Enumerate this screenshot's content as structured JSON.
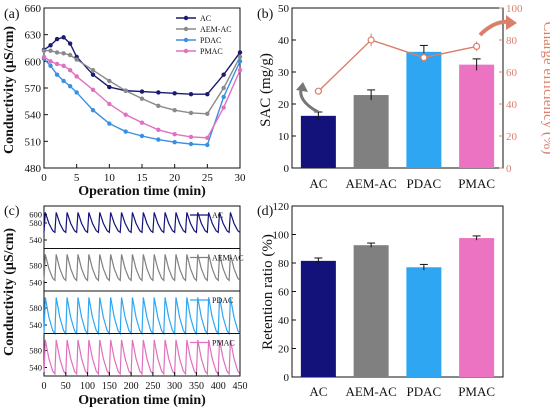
{
  "figure": {
    "panel_labels": [
      "(a)",
      "(b)",
      "(c)",
      "(d)"
    ]
  },
  "chart_data": [
    {
      "id": "a",
      "type": "line",
      "xlabel": "Operation time (min)",
      "ylabel": "Conductivity (μS/cm)",
      "xlim": [
        0,
        30
      ],
      "ylim": [
        480,
        660
      ],
      "xticks": [
        0,
        5,
        10,
        15,
        20,
        25,
        30
      ],
      "yticks": [
        480,
        510,
        540,
        570,
        600,
        630,
        660
      ],
      "legend_position": "top-right",
      "series": [
        {
          "name": "AC",
          "color": "#1a1a6e",
          "marker": "circle",
          "x": [
            0,
            1,
            2,
            3,
            4,
            5,
            7.5,
            10,
            12.5,
            15,
            17.5,
            20,
            22.5,
            25,
            27.5,
            30
          ],
          "y": [
            613,
            618,
            625,
            627,
            620,
            605,
            585,
            571,
            567,
            566,
            565,
            564,
            563,
            563,
            585,
            610
          ]
        },
        {
          "name": "AEM-AC",
          "color": "#8a8a8a",
          "marker": "circle",
          "x": [
            0,
            1,
            2,
            3,
            4,
            5,
            7.5,
            10,
            12.5,
            15,
            17.5,
            20,
            22.5,
            25,
            27.5,
            30
          ],
          "y": [
            612,
            612,
            610,
            609,
            607,
            602,
            590,
            578,
            567,
            558,
            550,
            545,
            542,
            541,
            570,
            605
          ]
        },
        {
          "name": "PDAC",
          "color": "#3a8fe0",
          "marker": "circle",
          "x": [
            0,
            1,
            2,
            3,
            4,
            5,
            7.5,
            10,
            12.5,
            15,
            17.5,
            20,
            22.5,
            25,
            27.5,
            30
          ],
          "y": [
            603,
            595,
            585,
            578,
            572,
            565,
            545,
            530,
            521,
            516,
            512,
            509,
            507,
            506,
            560,
            600
          ]
        },
        {
          "name": "PMAC",
          "color": "#e070c0",
          "marker": "circle",
          "x": [
            0,
            1,
            2,
            3,
            4,
            5,
            7.5,
            10,
            12.5,
            15,
            17.5,
            20,
            22.5,
            25,
            27.5,
            30
          ],
          "y": [
            605,
            600,
            597,
            595,
            590,
            583,
            568,
            552,
            540,
            531,
            523,
            518,
            515,
            514,
            548,
            590
          ]
        }
      ]
    },
    {
      "id": "b",
      "type": "bar",
      "categories": [
        "AC",
        "AEM-AC",
        "PDAC",
        "PMAC"
      ],
      "ylabel": "SAC (mg/g)",
      "ylabel_right": "Charge efficiency (%)",
      "ylim": [
        0,
        50
      ],
      "yticks": [
        0,
        10,
        20,
        30,
        40,
        50
      ],
      "ylim_right": [
        0,
        100
      ],
      "yticks_right": [
        0,
        20,
        40,
        60,
        80,
        100
      ],
      "series": [
        {
          "name": "SAC",
          "axis": "left",
          "colors": [
            "#12127a",
            "#808080",
            "#2ea6f2",
            "#ec73c2"
          ],
          "values": [
            16.3,
            22.8,
            36.3,
            32.3
          ],
          "errors": [
            1.2,
            1.6,
            2.0,
            1.8
          ]
        },
        {
          "name": "Charge efficiency",
          "axis": "right",
          "color": "#d9806a",
          "values": [
            48,
            80,
            69,
            76
          ],
          "errors": [
            2,
            4,
            3,
            3
          ]
        }
      ]
    },
    {
      "id": "c",
      "type": "line",
      "xlabel": "Operation time (min)",
      "ylabel": "Conductivity (μS/cm)",
      "xlim": [
        0,
        450
      ],
      "xticks": [
        0,
        50,
        100,
        150,
        200,
        250,
        300,
        350,
        400,
        450
      ],
      "ylim": [
        520,
        620
      ],
      "yticks": [
        540,
        580
      ],
      "yticks_top": [
        600
      ],
      "cycle_period_min": 25,
      "cycles": 18,
      "series": [
        {
          "name": "AC",
          "color": "#12127a",
          "y_high": 605,
          "y_low": 558
        },
        {
          "name": "AEM-AC",
          "color": "#808080",
          "y_high": 606,
          "y_low": 545
        },
        {
          "name": "PDAC",
          "color": "#2ea6f2",
          "y_high": 605,
          "y_low": 520
        },
        {
          "name": "PMAC",
          "color": "#e070c0",
          "y_high": 605,
          "y_low": 525
        }
      ]
    },
    {
      "id": "d",
      "type": "bar",
      "categories": [
        "AC",
        "AEM-AC",
        "PDAC",
        "PMAC"
      ],
      "ylabel": "Retention ratio (%)",
      "ylim": [
        0,
        120
      ],
      "yticks": [
        0,
        20,
        40,
        60,
        80,
        100,
        120
      ],
      "series": [
        {
          "name": "Retention ratio",
          "colors": [
            "#12127a",
            "#808080",
            "#2ea6f2",
            "#ec73c2"
          ],
          "values": [
            81.5,
            92.5,
            77.0,
            97.5
          ],
          "errors": [
            2.0,
            1.5,
            2.0,
            1.5
          ]
        }
      ]
    }
  ]
}
